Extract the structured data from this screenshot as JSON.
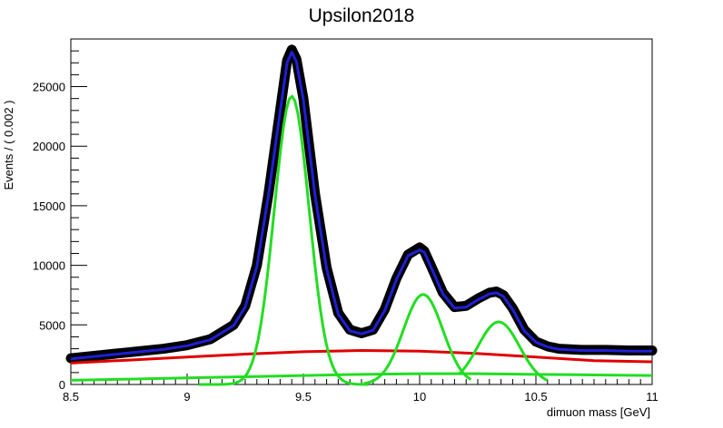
{
  "chart_data": {
    "type": "line",
    "title": "Upsilon2018",
    "xlabel": "dimuon mass [GeV]",
    "ylabel": "Events / ( 0.002 )",
    "xlim": [
      8.5,
      11
    ],
    "ylim": [
      0,
      29000
    ],
    "x_ticks": [
      8.5,
      9,
      9.5,
      10,
      10.5,
      11
    ],
    "x_tick_labels": [
      "8.5",
      "9",
      "9.5",
      "10",
      "10.5",
      "11"
    ],
    "y_ticks": [
      0,
      5000,
      10000,
      15000,
      20000,
      25000
    ],
    "y_tick_labels": [
      "0",
      "5000",
      "10000",
      "15000",
      "20000",
      "25000"
    ],
    "grid": false,
    "series": [
      {
        "role": "data",
        "color": "#000000",
        "x": [
          8.5,
          8.6,
          8.7,
          8.8,
          8.9,
          9.0,
          9.1,
          9.2,
          9.25,
          9.3,
          9.35,
          9.4,
          9.43,
          9.45,
          9.47,
          9.5,
          9.55,
          9.6,
          9.65,
          9.7,
          9.75,
          9.8,
          9.85,
          9.9,
          9.95,
          10.0,
          10.02,
          10.05,
          10.1,
          10.15,
          10.2,
          10.25,
          10.3,
          10.33,
          10.36,
          10.4,
          10.45,
          10.5,
          10.55,
          10.6,
          10.7,
          10.8,
          10.9,
          11.0
        ],
        "values": [
          2200,
          2400,
          2600,
          2800,
          3000,
          3300,
          3800,
          5000,
          6600,
          10000,
          16000,
          23000,
          27200,
          28100,
          27300,
          24000,
          16000,
          9800,
          6000,
          4600,
          4300,
          4600,
          6300,
          8900,
          10900,
          11500,
          11200,
          9900,
          7700,
          6500,
          6600,
          7200,
          7700,
          7800,
          7500,
          6400,
          4600,
          3600,
          3200,
          3000,
          2900,
          2900,
          2850,
          2850
        ]
      },
      {
        "role": "fit-total",
        "color": "#1f1fd6",
        "x": [
          8.5,
          8.6,
          8.7,
          8.8,
          8.9,
          9.0,
          9.1,
          9.2,
          9.25,
          9.3,
          9.35,
          9.4,
          9.43,
          9.45,
          9.47,
          9.5,
          9.55,
          9.6,
          9.65,
          9.7,
          9.75,
          9.8,
          9.85,
          9.9,
          9.95,
          10.0,
          10.02,
          10.05,
          10.1,
          10.15,
          10.2,
          10.25,
          10.3,
          10.33,
          10.36,
          10.4,
          10.45,
          10.5,
          10.55,
          10.6,
          10.7,
          10.8,
          10.9,
          11.0
        ],
        "values": [
          2150,
          2350,
          2550,
          2750,
          2950,
          3250,
          3750,
          4950,
          6500,
          9900,
          15900,
          22900,
          27000,
          27900,
          27100,
          23900,
          15900,
          9700,
          5900,
          4500,
          4250,
          4550,
          6200,
          8800,
          10800,
          11300,
          11100,
          9800,
          7600,
          6400,
          6500,
          7100,
          7600,
          7700,
          7400,
          6300,
          4500,
          3550,
          3150,
          2950,
          2850,
          2850,
          2800,
          2800
        ]
      },
      {
        "role": "background-1",
        "color": "#e00000",
        "x": [
          8.5,
          8.75,
          9.0,
          9.25,
          9.5,
          9.75,
          10.0,
          10.25,
          10.5,
          10.75,
          11.0
        ],
        "values": [
          1800,
          2050,
          2300,
          2550,
          2750,
          2850,
          2800,
          2600,
          2300,
          2000,
          1900
        ]
      },
      {
        "role": "background-2",
        "color": "#22dd22",
        "x": [
          8.5,
          8.75,
          9.0,
          9.25,
          9.5,
          9.75,
          10.0,
          10.25,
          10.5,
          10.75,
          11.0
        ],
        "values": [
          350,
          450,
          550,
          650,
          750,
          850,
          900,
          900,
          850,
          800,
          750
        ]
      },
      {
        "role": "signal-1S",
        "color": "#22dd22",
        "peak_x": 9.45,
        "peak_y": 24200,
        "sigma": 0.075,
        "x_range": [
          9.05,
          9.78
        ]
      },
      {
        "role": "signal-2S",
        "color": "#22dd22",
        "peak_x": 10.015,
        "peak_y": 7550,
        "sigma": 0.085,
        "x_range": [
          9.76,
          10.22
        ]
      },
      {
        "role": "signal-3S",
        "color": "#22dd22",
        "peak_x": 10.34,
        "peak_y": 5250,
        "sigma": 0.09,
        "x_range": [
          10.17,
          10.55
        ]
      }
    ]
  }
}
